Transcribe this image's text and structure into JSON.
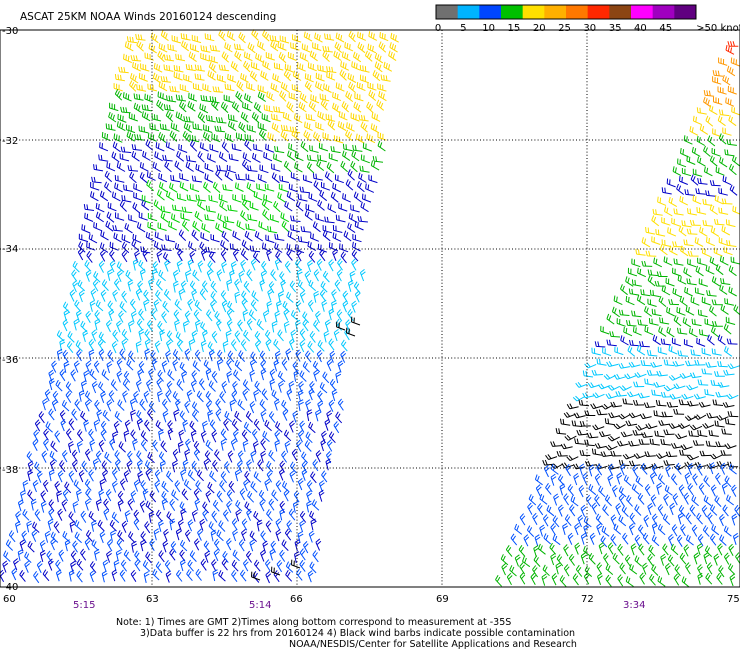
{
  "title": "ASCAT 25KM NOAA Winds 20160124 descending",
  "legend": {
    "unit_label": ">50 knots",
    "ticks": [
      "0",
      "5",
      "10",
      "15",
      "20",
      "25",
      "30",
      "35",
      "40",
      "45"
    ],
    "colors": [
      "#707070",
      "#00b4ff",
      "#0046ff",
      "#00c000",
      "#ffe000",
      "#ffb000",
      "#ff7800",
      "#ff2800",
      "#8b4513",
      "#ff00ff",
      "#a000c0",
      "#600080"
    ]
  },
  "map": {
    "lat_labels": [
      "-30",
      "-32",
      "-34",
      "-36",
      "-38",
      "-40"
    ],
    "lon_labels": [
      "60",
      "63",
      "66",
      "69",
      "72",
      "75"
    ],
    "time_labels": [
      "5:15",
      "5:14",
      "3:34"
    ]
  },
  "notes": {
    "line1": "Note: 1) Times are GMT 2)Times along bottom correspond to measurement at -35S",
    "line2": "3)Data buffer is 22 hrs from 20160124 4) Black wind barbs indicate possible contamination",
    "line3": "NOAA/NESDIS/Center for Satellite Applications and Research"
  },
  "swaths": [
    {
      "name": "west-swath",
      "bands": [
        {
          "lat_range": [
            -30,
            -31.2
          ],
          "color": "#ffd800",
          "speed_kts": "20-25"
        },
        {
          "lat_range": [
            -31.2,
            -33.6
          ],
          "color": "#00b400",
          "speed_kts": "15-20"
        },
        {
          "lat_range": [
            -32.2,
            -34.2
          ],
          "color": "#0000c8",
          "speed_kts": "10-15"
        },
        {
          "lat_range": [
            -34.2,
            -36.2
          ],
          "color": "#00c8ff",
          "speed_kts": "5-10"
        },
        {
          "lat_range": [
            -36.2,
            -40
          ],
          "color": "#0050ff",
          "speed_kts": "5-15"
        }
      ]
    },
    {
      "name": "east-swath",
      "bands": [
        {
          "lat_range": [
            -30,
            -30.8
          ],
          "color": "#ff2800",
          "speed_kts": "30-35"
        },
        {
          "lat_range": [
            -30.8,
            -31.8
          ],
          "color": "#ffb400",
          "speed_kts": "25-30"
        },
        {
          "lat_range": [
            -31.8,
            -33.0
          ],
          "color": "#00b400",
          "speed_kts": "15-20"
        },
        {
          "lat_range": [
            -33.0,
            -34.2
          ],
          "color": "#ffe000",
          "speed_kts": "20-25"
        },
        {
          "lat_range": [
            -34.2,
            -35.6
          ],
          "color": "#00b400",
          "speed_kts": "15-20"
        },
        {
          "lat_range": [
            -35.6,
            -36.8
          ],
          "color": "#00c8ff",
          "speed_kts": "5-10"
        },
        {
          "lat_range": [
            -36.8,
            -38.0
          ],
          "color": "#000000",
          "speed_kts": "contaminated"
        },
        {
          "lat_range": [
            -38.0,
            -39.8
          ],
          "color": "#0050ff",
          "speed_kts": "5-15"
        },
        {
          "lat_range": [
            -39.0,
            -40
          ],
          "color": "#00b400",
          "speed_kts": "15-20"
        }
      ]
    }
  ]
}
